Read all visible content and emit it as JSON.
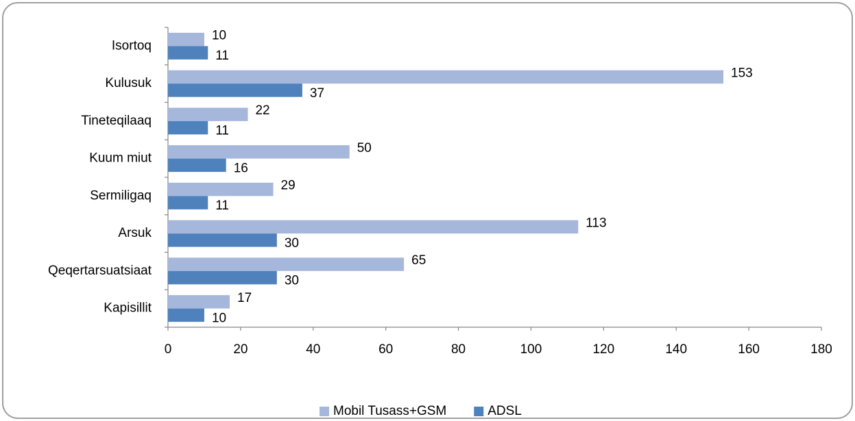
{
  "chart_data": {
    "type": "barh",
    "categories": [
      "Isortoq",
      "Kulusuk",
      "Tineteqilaaq",
      "Kuum miut",
      "Sermiligaq",
      "Arsuk",
      "Qeqertarsuatsiaat",
      "Kapisillit"
    ],
    "series": [
      {
        "name": "Mobil Tusass+GSM",
        "color": "#a6b7dc",
        "values": [
          10,
          153,
          22,
          50,
          29,
          113,
          65,
          17
        ]
      },
      {
        "name": "ADSL",
        "color": "#4f81bd",
        "values": [
          11,
          37,
          11,
          16,
          11,
          30,
          30,
          10
        ]
      }
    ],
    "xlim": [
      0,
      180
    ],
    "xticks": [
      0,
      20,
      40,
      60,
      80,
      100,
      120,
      140,
      160,
      180
    ],
    "grid": false,
    "legend": "bottom",
    "data_labels": true
  }
}
